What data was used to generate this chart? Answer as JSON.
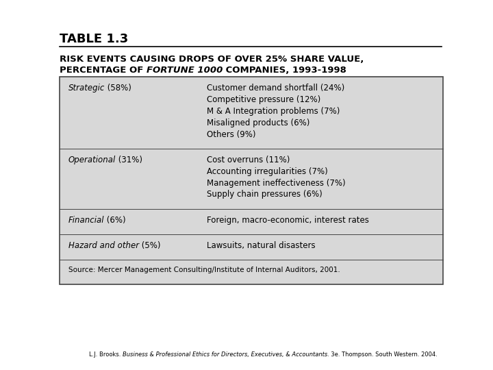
{
  "title": "TABLE 1.3",
  "subtitle_line1": "RISK EVENTS CAUSING DROPS OF OVER 25% SHARE VALUE,",
  "subtitle_line2_normal1": "PERCENTAGE OF ",
  "subtitle_line2_italic": "FORTUNE 1000",
  "subtitle_line2_normal2": " COMPANIES, 1993-1998",
  "table_bg": "#d8d8d8",
  "table_border": "#444444",
  "rows": [
    {
      "col1_italic": "Strategic",
      "col1_normal": " (58%)",
      "col2_lines": [
        "Customer demand shortfall (24%)",
        "Competitive pressure (12%)",
        "M & A Integration problems (7%)",
        "Misaligned products (6%)",
        "Others (9%)"
      ]
    },
    {
      "col1_italic": "Operational",
      "col1_normal": " (31%)",
      "col2_lines": [
        "Cost overruns (11%)",
        "Accounting irregularities (7%)",
        "Management ineffectiveness (7%)",
        "Supply chain pressures (6%)"
      ]
    },
    {
      "col1_italic": "Financial",
      "col1_normal": " (6%)",
      "col2_lines": [
        "Foreign, macro-economic, interest rates"
      ]
    },
    {
      "col1_italic": "Hazard and other",
      "col1_normal": " (5%)",
      "col2_lines": [
        "Lawsuits, natural disasters"
      ]
    }
  ],
  "source": "Source: Mercer Management Consulting/Institute of Internal Auditors, 2001.",
  "footer_normal1": "L.J. Brooks. ",
  "footer_italic": "Business & Professional Ethics for Directors, Executives, & Accountants",
  "footer_normal2": ". 3e. Thompson. South Western. 2004.",
  "title_fontsize": 13,
  "subtitle_fontsize": 9.5,
  "table_fontsize": 8.5,
  "source_fontsize": 7.5,
  "footer_fontsize": 6.0,
  "fig_width": 7.2,
  "fig_height": 5.4,
  "dpi": 100
}
